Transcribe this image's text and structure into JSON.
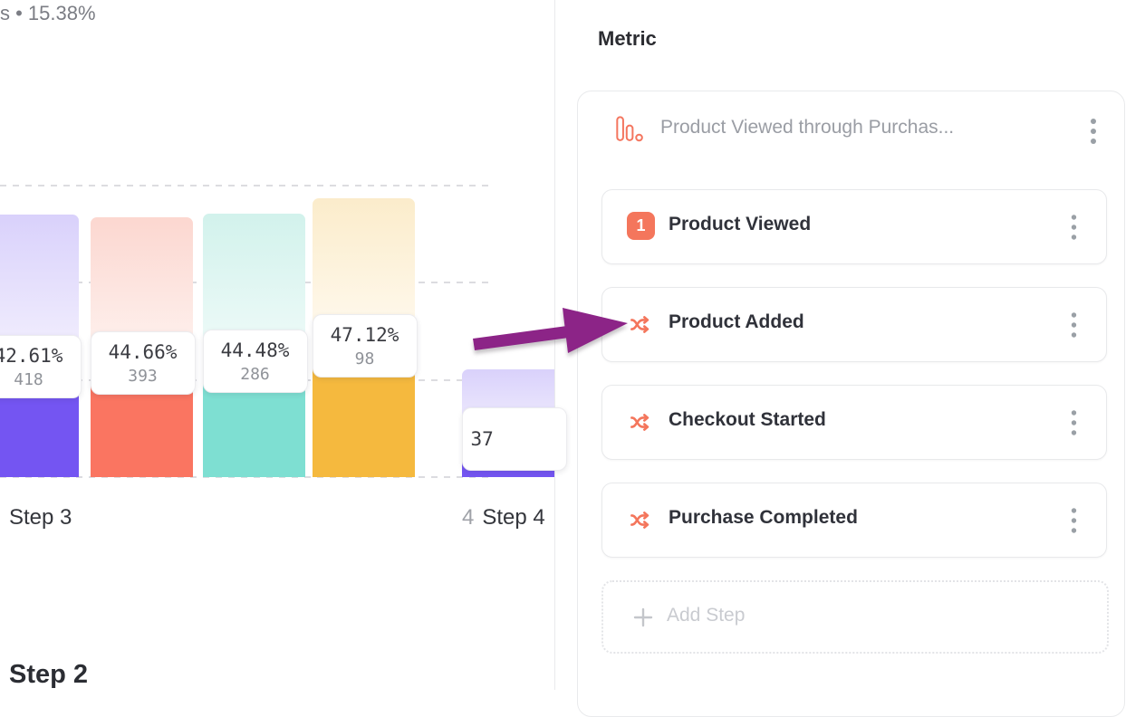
{
  "left_chart": {
    "top_note": "s • 15.38%",
    "x_axis": {
      "group1_label": "Step 3",
      "group2_number": "4",
      "group2_label": "Step 4"
    },
    "bottom_heading": "Step 2"
  },
  "chart_data": {
    "type": "bar",
    "description": "Funnel conversion chart: light bar = users entering step, solid bottom = users converting; floating label shows conversion rate and converted count",
    "gridline_count": 4,
    "bars": [
      {
        "group": "Step 3",
        "percent": "42.61%",
        "count": "418",
        "color": "#7455F2",
        "light_top": "#D9D1FB",
        "light_bottom": "#F4F1FE",
        "total_height_pct": 90.1,
        "converted_height_pct": 38.2,
        "clipped": "left"
      },
      {
        "group": "Step 3",
        "percent": "44.66%",
        "count": "393",
        "color": "#FA7561",
        "light_top": "#FCD7D0",
        "light_bottom": "#FEF3F0",
        "total_height_pct": 89.1,
        "converted_height_pct": 39.4,
        "clipped": ""
      },
      {
        "group": "Step 3",
        "percent": "44.48%",
        "count": "286",
        "color": "#7EDFD2",
        "light_top": "#D2F2EC",
        "light_bottom": "#F0FBF9",
        "total_height_pct": 90.4,
        "converted_height_pct": 40.1,
        "clipped": ""
      },
      {
        "group": "Step 3",
        "percent": "47.12%",
        "count": "98",
        "color": "#F5B93E",
        "light_top": "#FBECCB",
        "light_bottom": "#FFFAF0",
        "total_height_pct": 95.6,
        "converted_height_pct": 45.3,
        "clipped": ""
      },
      {
        "group": "Step 4",
        "percent": "37",
        "count": "",
        "color": "#7455F2",
        "light_top": "#D9D1FB",
        "light_bottom": "#F4F1FE",
        "total_height_pct": 37.0,
        "converted_height_pct": 13.4,
        "clipped": "right"
      }
    ]
  },
  "metric_panel": {
    "heading": "Metric",
    "metric_name": "Product Viewed through Purchas...",
    "accent_color": "#F4765C",
    "steps": [
      {
        "number": "1",
        "icon": "step-number-badge",
        "label": "Product Viewed"
      },
      {
        "number": "",
        "icon": "shuffle-icon",
        "label": "Product Added"
      },
      {
        "number": "",
        "icon": "shuffle-icon",
        "label": "Checkout Started"
      },
      {
        "number": "",
        "icon": "shuffle-icon",
        "label": "Purchase Completed"
      }
    ],
    "add_step_label": "Add Step"
  },
  "annotation_arrow": {
    "color": "#8C2487",
    "points_to": "Product Added"
  }
}
